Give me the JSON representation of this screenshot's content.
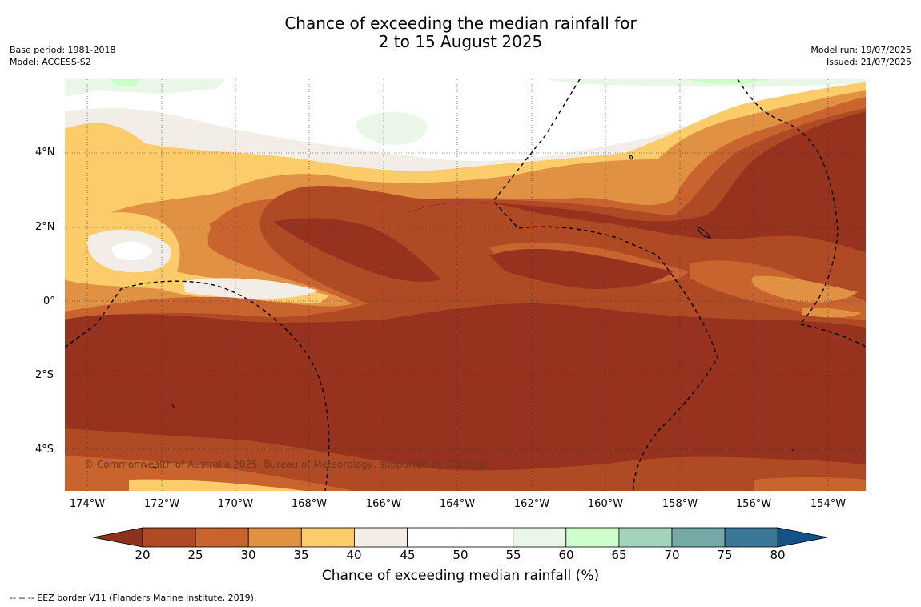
{
  "title_line1": "Chance of exceeding the median rainfall for",
  "title_line2": "2 to 15 August 2025",
  "base_period": "Base period: 1981-2018",
  "model": "Model: ACCESS-S2",
  "model_run": "Model run: 19/07/2025",
  "issued": "Issued: 21/07/2025",
  "copyright": "© Commonwealth of Australia 2025, Bureau of Meteorology, supported by COSPPac",
  "lat_ticks": [
    "4°N",
    "2°N",
    "0°",
    "2°S",
    "4°S"
  ],
  "lon_ticks": [
    "174°W",
    "172°W",
    "170°W",
    "168°W",
    "166°W",
    "164°W",
    "162°W",
    "160°W",
    "158°W",
    "156°W",
    "154°W"
  ],
  "colorbar": {
    "label": "Chance of exceeding median rainfall (%)",
    "ticks": [
      "20",
      "25",
      "30",
      "35",
      "40",
      "45",
      "50",
      "55",
      "60",
      "65",
      "70",
      "75",
      "80"
    ],
    "colors": [
      "#8e3220",
      "#b04a25",
      "#c9642f",
      "#e09142",
      "#fccb6a",
      "#f2ede6",
      "#ffffff",
      "#ffffff",
      "#e9f6e8",
      "#ccffcc",
      "#a1d4bb",
      "#74a9a8",
      "#3b7797",
      "#145289"
    ]
  },
  "footer": "--  --  -- EEZ border V11 (Flanders Marine Institute, 2019).",
  "map_colors": {
    "dry20": "#97321f",
    "dry25": "#b04a25",
    "dry30": "#c9642f",
    "dry35": "#e09142",
    "dry40": "#fccb6a",
    "neutral45": "#f2ede6",
    "neutral50": "#ffffff",
    "wet55": "#e9f6e8",
    "wet60": "#ccffcc"
  }
}
